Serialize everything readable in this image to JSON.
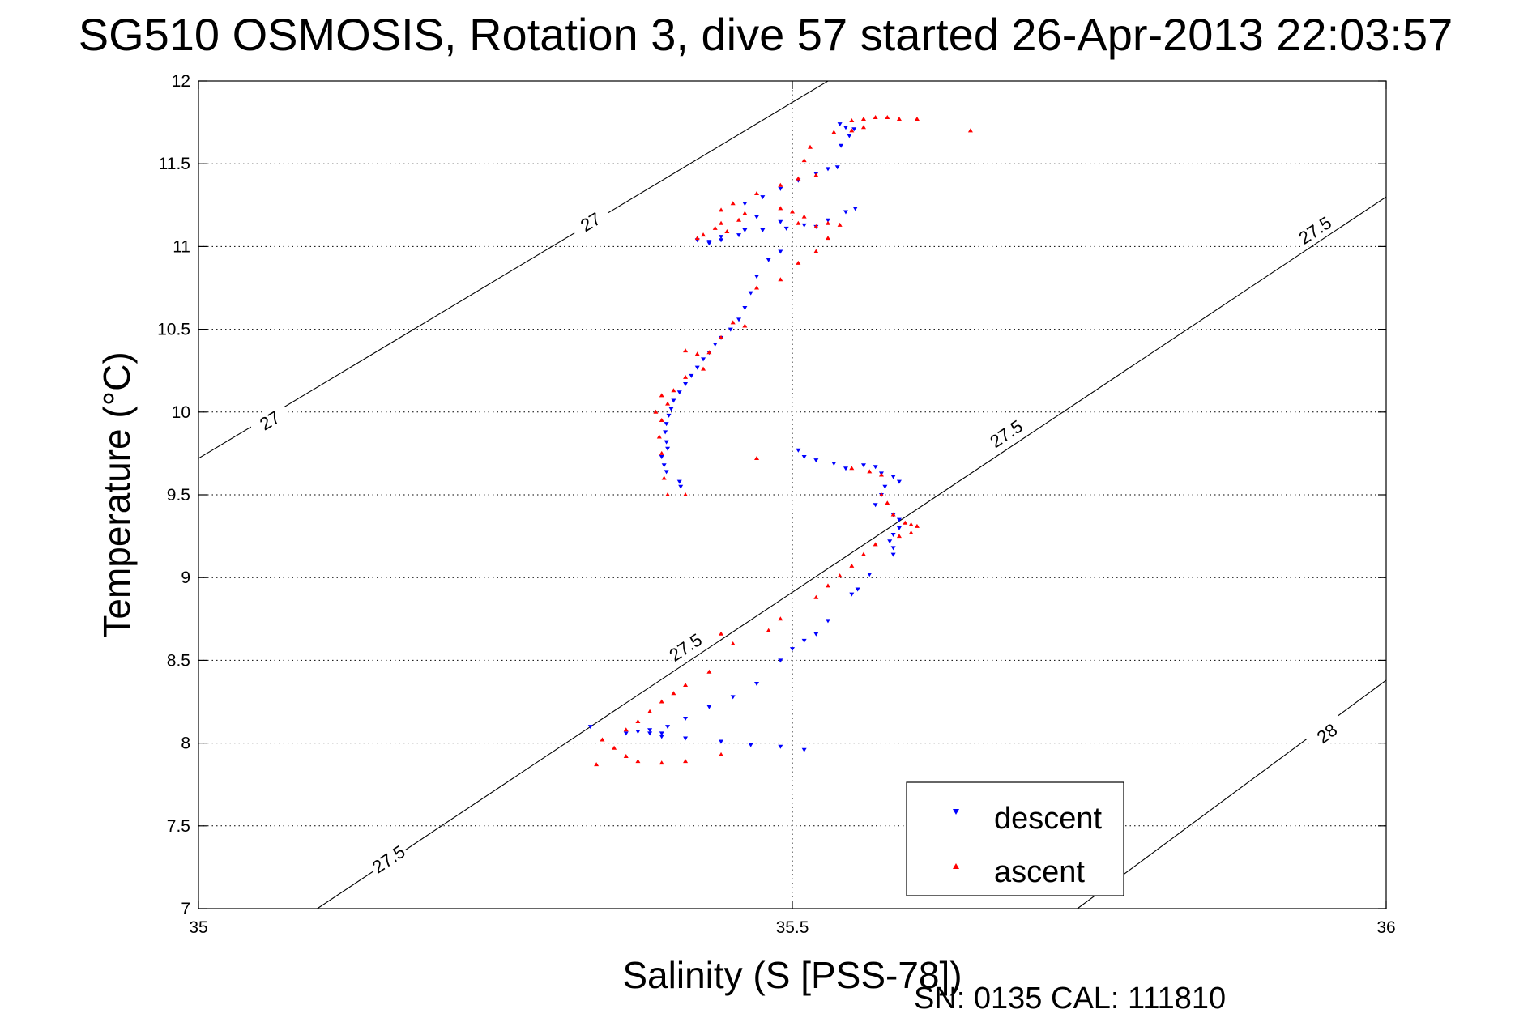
{
  "chart_data": {
    "type": "scatter",
    "title": "SG510 OSMOSIS, Rotation 3, dive 57 started 26-Apr-2013 22:03:57",
    "xlabel": "Salinity (S [PSS-78])",
    "ylabel": "Temperature (°C)",
    "xlim": [
      35,
      36
    ],
    "ylim": [
      7,
      12
    ],
    "xticks": [
      "35",
      "35.5",
      "36"
    ],
    "yticks": [
      "7",
      "7.5",
      "8",
      "8.5",
      "9",
      "9.5",
      "10",
      "10.5",
      "11",
      "11.5",
      "12"
    ],
    "grid": true,
    "legend_position": "bottom-right",
    "footer": "SN: 0135  CAL: 111810",
    "colors": {
      "descent": "#0000ff",
      "ascent": "#ff0000"
    },
    "contours": [
      {
        "label": "27",
        "points": [
          [
            35.0,
            9.72
          ],
          [
            35.53,
            12.0
          ]
        ],
        "label_positions": [
          [
            35.06,
            9.95
          ],
          [
            35.33,
            11.15
          ]
        ]
      },
      {
        "label": "27.5",
        "points": [
          [
            35.1,
            7.0
          ],
          [
            36.0,
            11.3
          ]
        ],
        "label_positions": [
          [
            35.16,
            7.3
          ],
          [
            35.41,
            8.58
          ],
          [
            35.68,
            9.87
          ],
          [
            35.94,
            11.1
          ]
        ]
      },
      {
        "label": "28",
        "points": [
          [
            35.74,
            7.0
          ],
          [
            36.0,
            8.38
          ]
        ],
        "label_positions": [
          [
            35.95,
            8.06
          ]
        ]
      }
    ],
    "series": [
      {
        "name": "descent",
        "marker": "triangle-down",
        "points": [
          [
            35.54,
            11.74
          ],
          [
            35.545,
            11.72
          ],
          [
            35.548,
            11.67
          ],
          [
            35.552,
            11.71
          ],
          [
            35.541,
            11.61
          ],
          [
            35.538,
            11.48
          ],
          [
            35.53,
            11.47
          ],
          [
            35.52,
            11.44
          ],
          [
            35.505,
            11.4
          ],
          [
            35.49,
            11.35
          ],
          [
            35.475,
            11.3
          ],
          [
            35.46,
            11.26
          ],
          [
            35.47,
            11.18
          ],
          [
            35.49,
            11.15
          ],
          [
            35.51,
            11.13
          ],
          [
            35.53,
            11.16
          ],
          [
            35.545,
            11.21
          ],
          [
            35.553,
            11.23
          ],
          [
            35.52,
            11.12
          ],
          [
            35.495,
            11.11
          ],
          [
            35.475,
            11.1
          ],
          [
            35.455,
            11.07
          ],
          [
            35.44,
            11.04
          ],
          [
            35.43,
            11.02
          ],
          [
            35.46,
            11.1
          ],
          [
            35.44,
            11.06
          ],
          [
            35.42,
            11.04
          ],
          [
            35.43,
            11.03
          ],
          [
            35.49,
            10.97
          ],
          [
            35.48,
            10.92
          ],
          [
            35.47,
            10.82
          ],
          [
            35.465,
            10.72
          ],
          [
            35.46,
            10.63
          ],
          [
            35.455,
            10.56
          ],
          [
            35.448,
            10.5
          ],
          [
            35.44,
            10.45
          ],
          [
            35.435,
            10.41
          ],
          [
            35.43,
            10.36
          ],
          [
            35.425,
            10.32
          ],
          [
            35.42,
            10.27
          ],
          [
            35.415,
            10.22
          ],
          [
            35.41,
            10.17
          ],
          [
            35.405,
            10.12
          ],
          [
            35.4,
            10.07
          ],
          [
            35.398,
            10.02
          ],
          [
            35.396,
            9.98
          ],
          [
            35.394,
            9.93
          ],
          [
            35.393,
            9.88
          ],
          [
            35.394,
            9.82
          ],
          [
            35.395,
            9.78
          ],
          [
            35.39,
            9.73
          ],
          [
            35.392,
            9.68
          ],
          [
            35.394,
            9.64
          ],
          [
            35.405,
            9.58
          ],
          [
            35.406,
            9.55
          ],
          [
            35.505,
            9.77
          ],
          [
            35.51,
            9.73
          ],
          [
            35.52,
            9.71
          ],
          [
            35.535,
            9.69
          ],
          [
            35.545,
            9.66
          ],
          [
            35.56,
            9.68
          ],
          [
            35.57,
            9.67
          ],
          [
            35.575,
            9.63
          ],
          [
            35.585,
            9.61
          ],
          [
            35.59,
            9.58
          ],
          [
            35.578,
            9.55
          ],
          [
            35.575,
            9.5
          ],
          [
            35.57,
            9.44
          ],
          [
            35.585,
            9.38
          ],
          [
            35.59,
            9.35
          ],
          [
            35.59,
            9.3
          ],
          [
            35.585,
            9.26
          ],
          [
            35.582,
            9.22
          ],
          [
            35.585,
            9.18
          ],
          [
            35.585,
            9.14
          ],
          [
            35.565,
            9.02
          ],
          [
            35.555,
            8.93
          ],
          [
            35.55,
            8.9
          ],
          [
            35.53,
            8.74
          ],
          [
            35.52,
            8.66
          ],
          [
            35.51,
            8.62
          ],
          [
            35.5,
            8.57
          ],
          [
            35.49,
            8.5
          ],
          [
            35.47,
            8.36
          ],
          [
            35.45,
            8.28
          ],
          [
            35.43,
            8.22
          ],
          [
            35.41,
            8.15
          ],
          [
            35.395,
            8.1
          ],
          [
            35.39,
            8.06
          ],
          [
            35.38,
            8.08
          ],
          [
            35.38,
            8.06
          ],
          [
            35.37,
            8.07
          ],
          [
            35.39,
            8.04
          ],
          [
            35.41,
            8.03
          ],
          [
            35.44,
            8.01
          ],
          [
            35.465,
            7.99
          ],
          [
            35.49,
            7.98
          ],
          [
            35.51,
            7.96
          ],
          [
            35.33,
            8.1
          ],
          [
            35.36,
            8.06
          ]
        ]
      },
      {
        "name": "ascent",
        "marker": "triangle-up",
        "points": [
          [
            35.55,
            11.76
          ],
          [
            35.56,
            11.77
          ],
          [
            35.57,
            11.78
          ],
          [
            35.58,
            11.78
          ],
          [
            35.59,
            11.77
          ],
          [
            35.605,
            11.77
          ],
          [
            35.65,
            11.7
          ],
          [
            35.55,
            11.7
          ],
          [
            35.56,
            11.72
          ],
          [
            35.535,
            11.69
          ],
          [
            35.515,
            11.6
          ],
          [
            35.51,
            11.52
          ],
          [
            35.52,
            11.43
          ],
          [
            35.505,
            11.41
          ],
          [
            35.49,
            11.37
          ],
          [
            35.47,
            11.32
          ],
          [
            35.45,
            11.26
          ],
          [
            35.44,
            11.22
          ],
          [
            35.46,
            11.2
          ],
          [
            35.49,
            11.23
          ],
          [
            35.5,
            11.21
          ],
          [
            35.51,
            11.18
          ],
          [
            35.505,
            11.14
          ],
          [
            35.52,
            11.12
          ],
          [
            35.53,
            11.14
          ],
          [
            35.54,
            11.13
          ],
          [
            35.53,
            11.05
          ],
          [
            35.52,
            10.97
          ],
          [
            35.505,
            10.9
          ],
          [
            35.49,
            10.8
          ],
          [
            35.47,
            10.75
          ],
          [
            35.445,
            11.09
          ],
          [
            35.425,
            11.07
          ],
          [
            35.42,
            11.05
          ],
          [
            35.435,
            11.11
          ],
          [
            35.44,
            11.14
          ],
          [
            35.455,
            11.16
          ],
          [
            35.46,
            10.52
          ],
          [
            35.45,
            10.54
          ],
          [
            35.44,
            10.45
          ],
          [
            35.43,
            10.36
          ],
          [
            35.42,
            10.35
          ],
          [
            35.41,
            10.37
          ],
          [
            35.425,
            10.26
          ],
          [
            35.41,
            10.21
          ],
          [
            35.4,
            10.13
          ],
          [
            35.395,
            10.05
          ],
          [
            35.39,
            10.1
          ],
          [
            35.385,
            10.0
          ],
          [
            35.39,
            9.95
          ],
          [
            35.388,
            9.85
          ],
          [
            35.39,
            9.75
          ],
          [
            35.392,
            9.6
          ],
          [
            35.395,
            9.5
          ],
          [
            35.41,
            9.5
          ],
          [
            35.47,
            9.72
          ],
          [
            35.55,
            9.66
          ],
          [
            35.565,
            9.64
          ],
          [
            35.575,
            9.62
          ],
          [
            35.575,
            9.5
          ],
          [
            35.58,
            9.45
          ],
          [
            35.585,
            9.38
          ],
          [
            35.595,
            9.33
          ],
          [
            35.6,
            9.32
          ],
          [
            35.605,
            9.31
          ],
          [
            35.6,
            9.27
          ],
          [
            35.59,
            9.25
          ],
          [
            35.57,
            9.2
          ],
          [
            35.56,
            9.14
          ],
          [
            35.55,
            9.07
          ],
          [
            35.54,
            9.01
          ],
          [
            35.53,
            8.95
          ],
          [
            35.52,
            8.88
          ],
          [
            35.49,
            8.75
          ],
          [
            35.48,
            8.68
          ],
          [
            35.44,
            8.66
          ],
          [
            35.45,
            8.6
          ],
          [
            35.43,
            8.43
          ],
          [
            35.41,
            8.35
          ],
          [
            35.4,
            8.3
          ],
          [
            35.39,
            8.25
          ],
          [
            35.38,
            8.19
          ],
          [
            35.37,
            8.13
          ],
          [
            35.36,
            8.08
          ],
          [
            35.34,
            8.02
          ],
          [
            35.35,
            7.97
          ],
          [
            35.39,
            7.88
          ],
          [
            35.37,
            7.89
          ],
          [
            35.335,
            7.87
          ],
          [
            35.36,
            7.92
          ],
          [
            35.41,
            7.89
          ],
          [
            35.44,
            7.93
          ]
        ]
      }
    ]
  },
  "legend": {
    "descent_label": "descent",
    "ascent_label": "ascent"
  }
}
